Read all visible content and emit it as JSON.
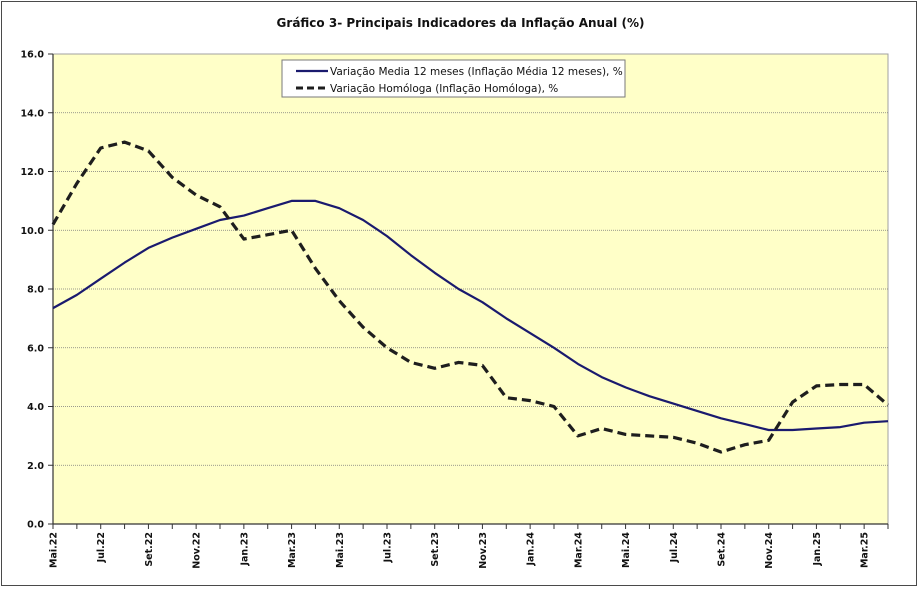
{
  "chart_data": {
    "type": "line",
    "title": "Gráfico 3- Principais Indicadores da Inflação Anual (%)",
    "xlabel": "",
    "ylabel": "",
    "ylim": [
      0,
      16
    ],
    "yticks": [
      "0.0",
      "2.0",
      "4.0",
      "6.0",
      "8.0",
      "10.0",
      "12.0",
      "14.0",
      "16.0"
    ],
    "ytick_values": [
      0,
      2,
      4,
      6,
      8,
      10,
      12,
      14,
      16
    ],
    "grid": true,
    "legend_position": "top-center",
    "plot_background": "#ffffc8",
    "x": [
      "Mai.22",
      "Jun.22",
      "Jul.22",
      "Ago.22",
      "Set.22",
      "Out.22",
      "Nov.22",
      "Dez.22",
      "Jan.23",
      "Fev.23",
      "Mar.23",
      "Abr.23",
      "Mai.23",
      "Jun.23",
      "Jul.23",
      "Ago.23",
      "Set.23",
      "Out.23",
      "Nov.23",
      "Dez.23",
      "Jan.24",
      "Fev.24",
      "Mar.24",
      "Abr.24",
      "Mai.24",
      "Jun.24",
      "Jul.24",
      "Ago.24",
      "Set.24",
      "Out.24",
      "Nov.24",
      "Dez.24",
      "Jan.25",
      "Fev.25",
      "Mar.25",
      "Abr.25"
    ],
    "xtick_labels": [
      "Mai.22",
      "Jul.22",
      "Set.22",
      "Nov.22",
      "Jan.23",
      "Mar.23",
      "Mai.23",
      "Jul.23",
      "Set.23",
      "Nov.23",
      "Jan.24",
      "Mar.24",
      "Mai.24",
      "Jul.24",
      "Set.24",
      "Nov.24",
      "Jan.25",
      "Mar.25"
    ],
    "series": [
      {
        "name": "Variação Media 12 meses (Inflação Média 12 meses), %",
        "style": "solid",
        "color": "#1a1a6e",
        "values": [
          7.35,
          7.8,
          8.35,
          8.9,
          9.4,
          9.75,
          10.05,
          10.35,
          10.5,
          10.75,
          11.0,
          11.0,
          10.75,
          10.35,
          9.8,
          9.15,
          8.55,
          8.0,
          7.55,
          7.0,
          6.5,
          6.0,
          5.45,
          5.0,
          4.65,
          4.35,
          4.1,
          3.85,
          3.6,
          3.4,
          3.2,
          3.2,
          3.25,
          3.3,
          3.45,
          3.5
        ]
      },
      {
        "name": "Variação Homóloga (Inflação Homóloga), %",
        "style": "dashed",
        "color": "#1e1e1e",
        "values": [
          10.2,
          11.6,
          12.8,
          13.0,
          12.7,
          11.8,
          11.2,
          10.8,
          9.7,
          9.85,
          10.0,
          8.7,
          7.6,
          6.7,
          6.0,
          5.5,
          5.3,
          5.5,
          5.4,
          4.3,
          4.2,
          4.0,
          3.0,
          3.25,
          3.05,
          3.0,
          2.95,
          2.75,
          2.45,
          2.7,
          2.85,
          4.15,
          4.7,
          4.75,
          4.75,
          4.05
        ]
      }
    ]
  }
}
